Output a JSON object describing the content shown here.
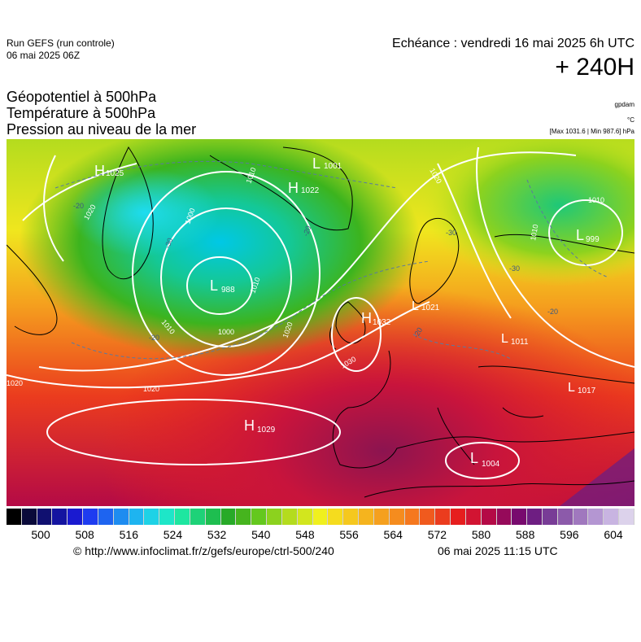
{
  "header": {
    "run_line1": "Run GEFS (run controle)",
    "run_line2": "06 mai 2025 06Z",
    "echeance": "Echéance : vendredi 16 mai 2025 6h UTC",
    "horizon": "+ 240H"
  },
  "parameters": {
    "line1": "Géopotentiel à 500hPa",
    "line2": "Température à 500hPa",
    "line3": "Pression au niveau de la mer"
  },
  "units": {
    "geopotential": "gpdam",
    "temperature": "°C",
    "pressure_range": "[Max 1031.6 | Min 987.6] hPa"
  },
  "map": {
    "pressure_centers": [
      {
        "type": "H",
        "value": "1025"
      },
      {
        "type": "L",
        "value": "1001"
      },
      {
        "type": "H",
        "value": "1022"
      },
      {
        "type": "L",
        "value": "988"
      },
      {
        "type": "H",
        "value": "1032"
      },
      {
        "type": "L",
        "value": "1021"
      },
      {
        "type": "L",
        "value": "1011"
      },
      {
        "type": "L",
        "value": "999"
      },
      {
        "type": "L",
        "value": "1017"
      },
      {
        "type": "H",
        "value": "1029"
      },
      {
        "type": "L",
        "value": "1004"
      }
    ],
    "isobar_labels": [
      "1020",
      "1010",
      "1000",
      "1000",
      "1010",
      "1010",
      "1020",
      "1020",
      "1030",
      "1020",
      "1020",
      "1010",
      "1010"
    ],
    "isotherm_labels": [
      "-20",
      "-30",
      "-20",
      "-20",
      "-30",
      "-20",
      "-20",
      "-30"
    ]
  },
  "colorbar": {
    "colors": [
      "#000000",
      "#0a0a3a",
      "#101070",
      "#1414a0",
      "#1a1ad0",
      "#1e3cf0",
      "#1e64f0",
      "#1e8cf0",
      "#1eb4f0",
      "#1ed2e6",
      "#1ee6c8",
      "#1ee6a0",
      "#1ed278",
      "#1ebe50",
      "#28aa28",
      "#46b41e",
      "#64c81e",
      "#8cd21e",
      "#b4dc1e",
      "#d2e61e",
      "#f0f01e",
      "#f5dc1e",
      "#f5c81e",
      "#f5b41e",
      "#f5a01e",
      "#f58c1e",
      "#f5781e",
      "#f05a1e",
      "#eb3c1e",
      "#e61e1e",
      "#d21432",
      "#b40a46",
      "#960a5a",
      "#780a6e",
      "#6e1e82",
      "#783c96",
      "#8c5aaa",
      "#a078be",
      "#b496d2",
      "#c8b4e1",
      "#dcd2eb"
    ],
    "ticks": [
      "500",
      "508",
      "516",
      "524",
      "532",
      "540",
      "548",
      "556",
      "564",
      "572",
      "580",
      "588",
      "596",
      "604"
    ]
  },
  "footer": {
    "source": "© http://www.infoclimat.fr/z/gefs/europe/ctrl-500/240",
    "generated": "06 mai 2025 11:15 UTC"
  }
}
